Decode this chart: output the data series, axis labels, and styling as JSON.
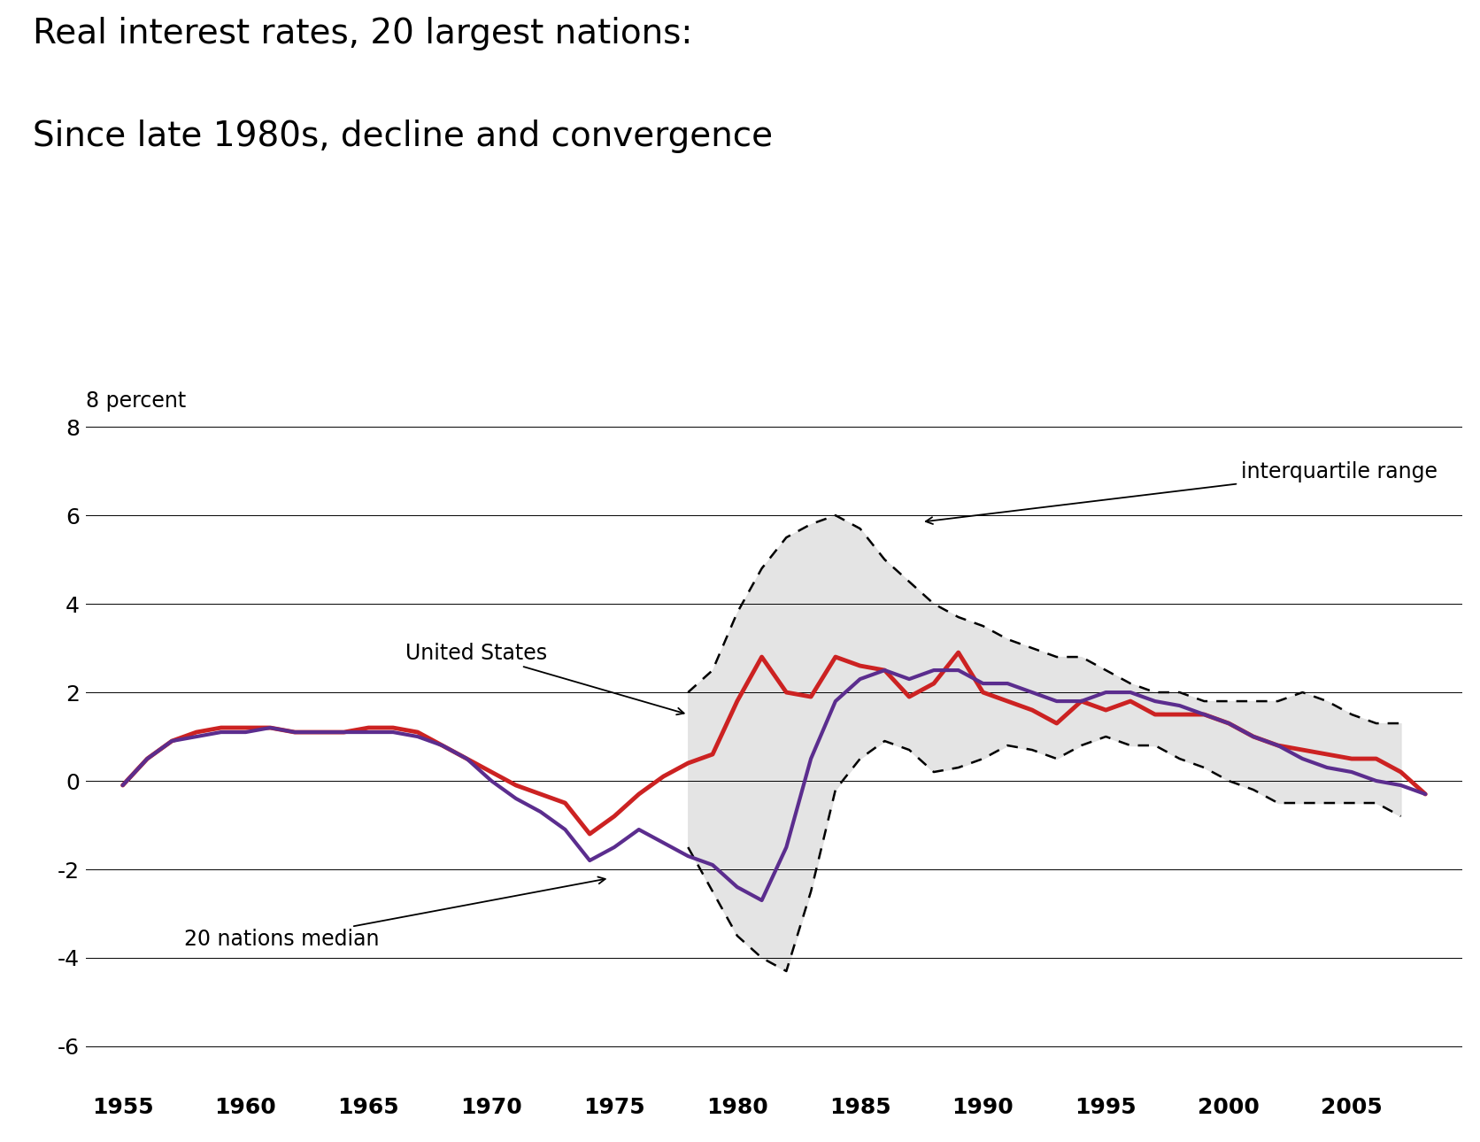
{
  "title_line1": "Real interest rates, 20 largest nations:",
  "title_line2": "Since late 1980s, decline and convergence",
  "ylabel_text": "8 percent",
  "ylim": [
    -7,
    9
  ],
  "yticks": [
    -6,
    -4,
    -2,
    0,
    2,
    4,
    6,
    8
  ],
  "background_color": "#ffffff",
  "us_color": "#cc2222",
  "median_color": "#5B2D8E",
  "shading_color": "#e0e0e0",
  "annotation_us_text": "United States",
  "annotation_median_text": "20 nations median",
  "annotation_iqr_text": "interquartile range",
  "years": [
    1955,
    1956,
    1957,
    1958,
    1959,
    1960,
    1961,
    1962,
    1963,
    1964,
    1965,
    1966,
    1967,
    1968,
    1969,
    1970,
    1971,
    1972,
    1973,
    1974,
    1975,
    1976,
    1977,
    1978,
    1979,
    1980,
    1981,
    1982,
    1983,
    1984,
    1985,
    1986,
    1987,
    1988,
    1989,
    1990,
    1991,
    1992,
    1993,
    1994,
    1995,
    1996,
    1997,
    1998,
    1999,
    2000,
    2001,
    2002,
    2003,
    2004,
    2005,
    2006,
    2007,
    2008
  ],
  "us_values": [
    -0.1,
    0.5,
    0.9,
    1.1,
    1.2,
    1.2,
    1.2,
    1.1,
    1.1,
    1.1,
    1.2,
    1.2,
    1.1,
    0.8,
    0.5,
    0.2,
    -0.1,
    -0.3,
    -0.5,
    -1.2,
    -0.8,
    -0.3,
    0.1,
    0.4,
    0.6,
    1.8,
    2.8,
    2.0,
    1.9,
    2.8,
    2.6,
    2.5,
    1.9,
    2.2,
    2.9,
    2.0,
    1.8,
    1.6,
    1.3,
    1.8,
    1.6,
    1.8,
    1.5,
    1.5,
    1.5,
    1.3,
    1.0,
    0.8,
    0.7,
    0.6,
    0.5,
    0.5,
    0.2,
    -0.3
  ],
  "median_values": [
    -0.1,
    0.5,
    0.9,
    1.0,
    1.1,
    1.1,
    1.2,
    1.1,
    1.1,
    1.1,
    1.1,
    1.1,
    1.0,
    0.8,
    0.5,
    0.0,
    -0.4,
    -0.7,
    -1.1,
    -1.8,
    -1.5,
    -1.1,
    -1.4,
    -1.7,
    -1.9,
    -2.4,
    -2.7,
    -1.5,
    0.5,
    1.8,
    2.3,
    2.5,
    2.3,
    2.5,
    2.5,
    2.2,
    2.2,
    2.0,
    1.8,
    1.8,
    2.0,
    2.0,
    1.8,
    1.7,
    1.5,
    1.3,
    1.0,
    0.8,
    0.5,
    0.3,
    0.2,
    0.0,
    -0.1,
    -0.3
  ],
  "iqr_start_year": 1978,
  "iqr_upper": [
    2.0,
    2.5,
    3.8,
    4.8,
    5.5,
    5.8,
    6.0,
    5.7,
    5.0,
    4.5,
    4.0,
    3.7,
    3.5,
    3.2,
    3.0,
    2.8,
    2.8,
    2.5,
    2.2,
    2.0,
    2.0,
    1.8,
    1.8,
    1.8,
    1.8,
    2.0,
    1.8,
    1.5,
    1.3,
    1.3
  ],
  "iqr_lower": [
    -1.5,
    -2.5,
    -3.5,
    -4.0,
    -4.3,
    -2.5,
    -0.2,
    0.5,
    0.9,
    0.7,
    0.2,
    0.3,
    0.5,
    0.8,
    0.7,
    0.5,
    0.8,
    1.0,
    0.8,
    0.8,
    0.5,
    0.3,
    0.0,
    -0.2,
    -0.5,
    -0.5,
    -0.5,
    -0.5,
    -0.5,
    -0.8
  ],
  "xtick_years": [
    1955,
    1960,
    1965,
    1970,
    1975,
    1980,
    1985,
    1990,
    1995,
    2000,
    2005
  ],
  "title_fontsize": 28,
  "tick_fontsize": 18,
  "annotation_fontsize": 17,
  "ylabel_fontsize": 17
}
